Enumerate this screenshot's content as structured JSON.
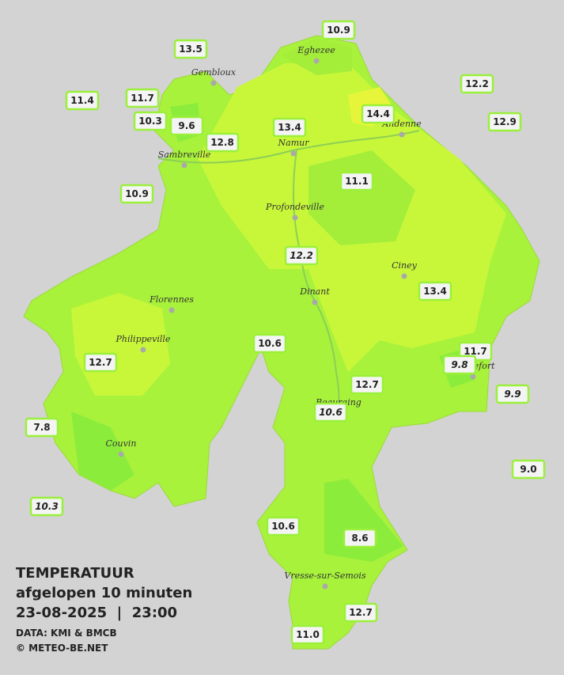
{
  "map": {
    "title": "TEMPERATUUR",
    "subtitle": "afgelopen 10 minuten",
    "datetime": "23-08-2025  |  23:00",
    "source": "DATA: KMI & BMCB",
    "credit": "© METEO-BE.NET",
    "towns": [
      "Eghezee",
      "Gembloux",
      "Andenne",
      "Namur",
      "Sambreville",
      "Profondeville",
      "Ciney",
      "Dinant",
      "Florennes",
      "Philippeville",
      "Rochefort",
      "Beauraing",
      "Couvin",
      "Vresse-sur-Semois"
    ],
    "stations": [
      "10.9",
      "13.5",
      "12.2",
      "11.4",
      "11.7",
      "10.3",
      "9.6",
      "14.4",
      "12.9",
      "13.4",
      "12.8",
      "11.1",
      "10.9",
      "12.2",
      "13.4",
      "10.6",
      "11.7",
      "12.7",
      "9.8",
      "12.7",
      "9.9",
      "10.6",
      "7.8",
      "9.0",
      "10.3",
      "10.6",
      "8.6",
      "12.7",
      "11.0"
    ]
  }
}
